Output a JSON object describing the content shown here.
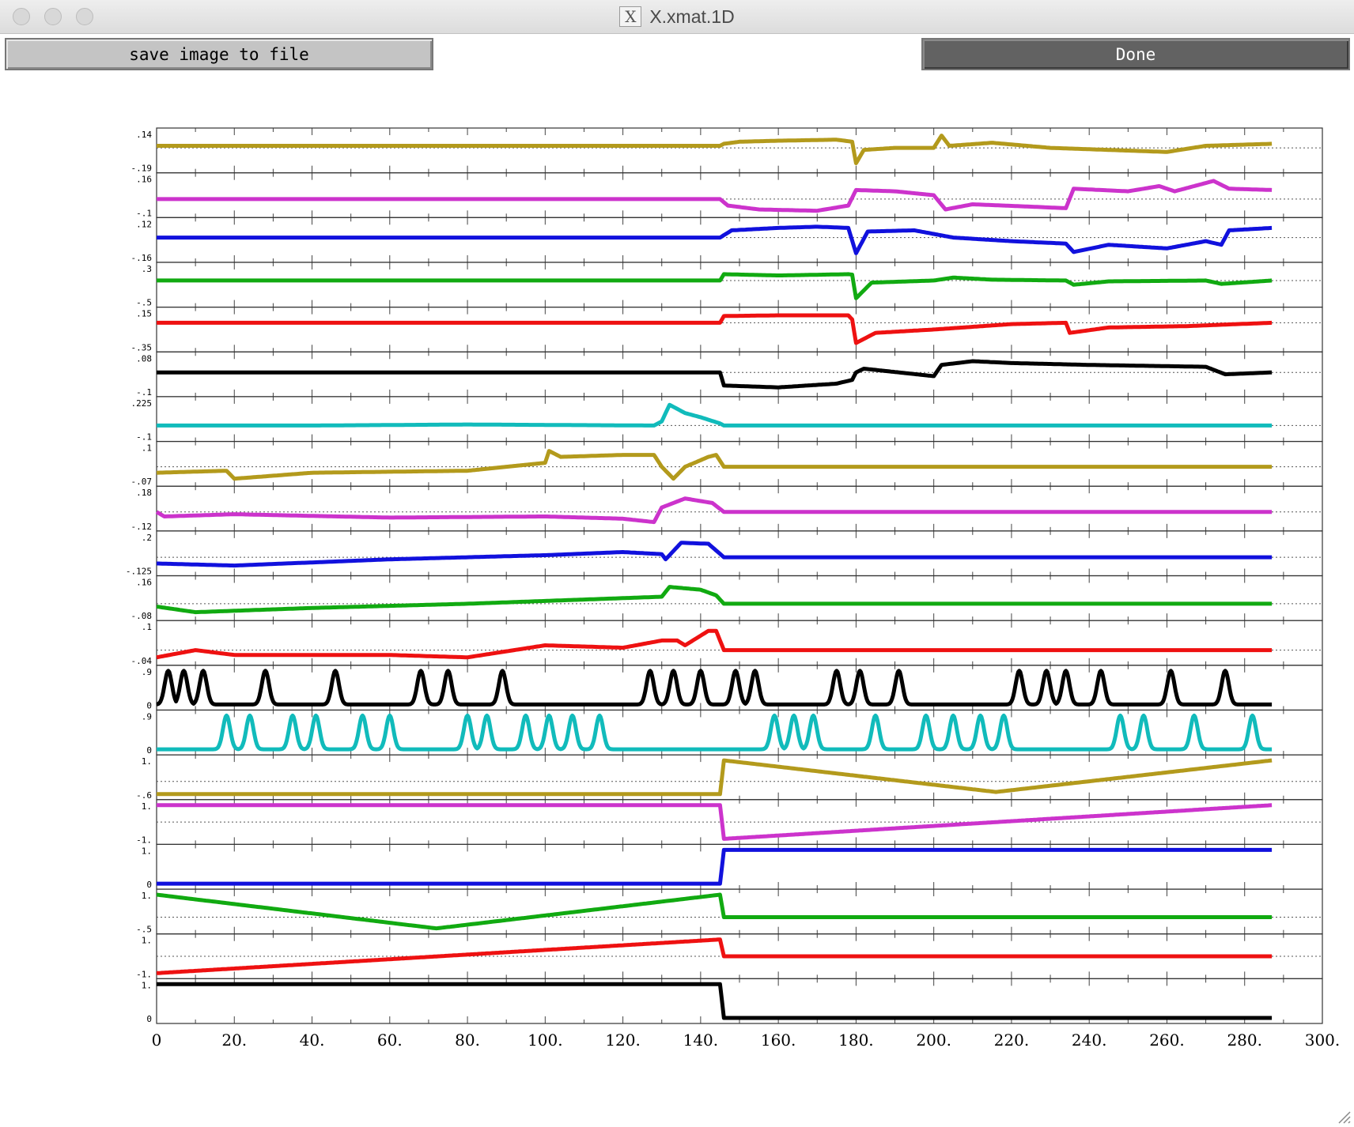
{
  "window": {
    "title": "X.xmat.1D"
  },
  "toolbar": {
    "save_label": "save image to file",
    "done_label": "Done"
  },
  "icons": {
    "app": "x11-icon",
    "resize": "resize-grip-icon"
  },
  "chart_data": {
    "type": "line",
    "title": "",
    "xlabel": "",
    "ylabel": "",
    "xlim": [
      0,
      300
    ],
    "x_ticks": [
      "0",
      "20.",
      "40.",
      "60.",
      "80.",
      "100.",
      "120.",
      "140.",
      "160.",
      "180.",
      "200.",
      "220.",
      "240.",
      "260.",
      "280.",
      "300."
    ],
    "n_timepoints": 288,
    "grid": true,
    "series": [
      {
        "color": "#b39a1c",
        "top_label": ".14",
        "bottom_label": "-.19",
        "values": [
          [
            0,
            0.02
          ],
          [
            145,
            0.02
          ],
          [
            146,
            0.04
          ],
          [
            150,
            0.06
          ],
          [
            160,
            0.07
          ],
          [
            175,
            0.08
          ],
          [
            179,
            0.06
          ],
          [
            180,
            -0.15
          ],
          [
            182,
            -0.02
          ],
          [
            190,
            0.0
          ],
          [
            200,
            0.0
          ],
          [
            202,
            0.12
          ],
          [
            204,
            0.02
          ],
          [
            215,
            0.05
          ],
          [
            230,
            0.0
          ],
          [
            245,
            -0.02
          ],
          [
            260,
            -0.04
          ],
          [
            270,
            0.02
          ],
          [
            287,
            0.04
          ]
        ]
      },
      {
        "color": "#cc33cc",
        "top_label": ".16",
        "bottom_label": "-.1",
        "values": [
          [
            0,
            0.0
          ],
          [
            145,
            0.0
          ],
          [
            147,
            -0.05
          ],
          [
            155,
            -0.08
          ],
          [
            170,
            -0.09
          ],
          [
            178,
            -0.05
          ],
          [
            180,
            0.07
          ],
          [
            190,
            0.06
          ],
          [
            200,
            0.03
          ],
          [
            203,
            -0.08
          ],
          [
            210,
            -0.04
          ],
          [
            234,
            -0.07
          ],
          [
            236,
            0.08
          ],
          [
            250,
            0.06
          ],
          [
            258,
            0.1
          ],
          [
            262,
            0.06
          ],
          [
            272,
            0.14
          ],
          [
            276,
            0.08
          ],
          [
            287,
            0.07
          ]
        ]
      },
      {
        "color": "#1111dd",
        "top_label": ".12",
        "bottom_label": "-.16",
        "values": [
          [
            0,
            0.0
          ],
          [
            145,
            0.0
          ],
          [
            148,
            0.06
          ],
          [
            160,
            0.08
          ],
          [
            170,
            0.09
          ],
          [
            178,
            0.08
          ],
          [
            180,
            -0.13
          ],
          [
            183,
            0.05
          ],
          [
            195,
            0.06
          ],
          [
            205,
            0.0
          ],
          [
            220,
            -0.03
          ],
          [
            234,
            -0.05
          ],
          [
            236,
            -0.12
          ],
          [
            245,
            -0.06
          ],
          [
            260,
            -0.09
          ],
          [
            270,
            -0.03
          ],
          [
            274,
            -0.06
          ],
          [
            276,
            0.06
          ],
          [
            287,
            0.08
          ]
        ]
      },
      {
        "color": "#11aa11",
        "top_label": ".3",
        "bottom_label": "-.5",
        "values": [
          [
            0,
            0.0
          ],
          [
            145,
            0.0
          ],
          [
            146,
            0.15
          ],
          [
            160,
            0.12
          ],
          [
            178,
            0.15
          ],
          [
            179,
            0.14
          ],
          [
            180,
            -0.42
          ],
          [
            184,
            -0.05
          ],
          [
            200,
            0.0
          ],
          [
            205,
            0.07
          ],
          [
            215,
            0.02
          ],
          [
            234,
            0.0
          ],
          [
            236,
            -0.1
          ],
          [
            245,
            -0.02
          ],
          [
            270,
            0.0
          ],
          [
            274,
            -0.08
          ],
          [
            287,
            0.0
          ]
        ]
      },
      {
        "color": "#ee1111",
        "top_label": ".15",
        "bottom_label": "-.35",
        "values": [
          [
            0,
            0.0
          ],
          [
            145,
            0.0
          ],
          [
            146,
            0.1
          ],
          [
            160,
            0.11
          ],
          [
            178,
            0.11
          ],
          [
            179,
            0.05
          ],
          [
            180,
            -0.3
          ],
          [
            185,
            -0.15
          ],
          [
            200,
            -0.1
          ],
          [
            220,
            -0.02
          ],
          [
            234,
            0.0
          ],
          [
            235,
            -0.15
          ],
          [
            245,
            -0.07
          ],
          [
            265,
            -0.05
          ],
          [
            287,
            0.0
          ]
        ]
      },
      {
        "color": "#000000",
        "top_label": ".08",
        "bottom_label": "-.1",
        "values": [
          [
            0,
            0.0
          ],
          [
            145,
            0.0
          ],
          [
            146,
            -0.07
          ],
          [
            160,
            -0.08
          ],
          [
            175,
            -0.06
          ],
          [
            179,
            -0.04
          ],
          [
            180,
            0.0
          ],
          [
            182,
            0.02
          ],
          [
            200,
            -0.02
          ],
          [
            202,
            0.04
          ],
          [
            210,
            0.06
          ],
          [
            220,
            0.05
          ],
          [
            240,
            0.04
          ],
          [
            270,
            0.03
          ],
          [
            275,
            -0.01
          ],
          [
            287,
            0.0
          ]
        ]
      },
      {
        "color": "#11bbbb",
        "top_label": ".225",
        "bottom_label": "-.1",
        "values": [
          [
            0,
            0.0
          ],
          [
            40,
            0.0
          ],
          [
            80,
            0.01
          ],
          [
            128,
            0.0
          ],
          [
            130,
            0.04
          ],
          [
            132,
            0.2
          ],
          [
            136,
            0.12
          ],
          [
            140,
            0.08
          ],
          [
            145,
            0.02
          ],
          [
            146,
            0.0
          ],
          [
            287,
            0.0
          ]
        ]
      },
      {
        "color": "#b39a1c",
        "top_label": ".1",
        "bottom_label": "-.07",
        "values": [
          [
            0,
            -0.03
          ],
          [
            18,
            -0.02
          ],
          [
            20,
            -0.06
          ],
          [
            40,
            -0.03
          ],
          [
            80,
            -0.02
          ],
          [
            90,
            0.0
          ],
          [
            100,
            0.02
          ],
          [
            101,
            0.08
          ],
          [
            104,
            0.05
          ],
          [
            120,
            0.06
          ],
          [
            128,
            0.06
          ],
          [
            130,
            0.0
          ],
          [
            133,
            -0.06
          ],
          [
            136,
            0.0
          ],
          [
            142,
            0.05
          ],
          [
            144,
            0.06
          ],
          [
            146,
            0.0
          ],
          [
            287,
            0.0
          ]
        ]
      },
      {
        "color": "#cc33cc",
        "top_label": ".18",
        "bottom_label": "-.12",
        "values": [
          [
            0,
            0.0
          ],
          [
            2,
            -0.04
          ],
          [
            20,
            -0.02
          ],
          [
            60,
            -0.05
          ],
          [
            100,
            -0.04
          ],
          [
            120,
            -0.06
          ],
          [
            128,
            -0.09
          ],
          [
            130,
            0.04
          ],
          [
            136,
            0.12
          ],
          [
            143,
            0.08
          ],
          [
            146,
            0.0
          ],
          [
            287,
            0.0
          ]
        ]
      },
      {
        "color": "#1111dd",
        "top_label": ".2",
        "bottom_label": "-.125",
        "values": [
          [
            0,
            -0.06
          ],
          [
            20,
            -0.08
          ],
          [
            60,
            -0.02
          ],
          [
            100,
            0.02
          ],
          [
            120,
            0.05
          ],
          [
            130,
            0.03
          ],
          [
            131,
            -0.02
          ],
          [
            135,
            0.14
          ],
          [
            142,
            0.13
          ],
          [
            146,
            0.0
          ],
          [
            287,
            0.0
          ]
        ]
      },
      {
        "color": "#11aa11",
        "top_label": ".16",
        "bottom_label": "-.08",
        "values": [
          [
            0,
            -0.02
          ],
          [
            10,
            -0.06
          ],
          [
            40,
            -0.03
          ],
          [
            80,
            0.0
          ],
          [
            120,
            0.04
          ],
          [
            130,
            0.05
          ],
          [
            132,
            0.12
          ],
          [
            140,
            0.1
          ],
          [
            144,
            0.06
          ],
          [
            146,
            0.0
          ],
          [
            287,
            0.0
          ]
        ]
      },
      {
        "color": "#ee1111",
        "top_label": ".1",
        "bottom_label": "-.04",
        "values": [
          [
            0,
            -0.03
          ],
          [
            10,
            0.0
          ],
          [
            20,
            -0.02
          ],
          [
            60,
            -0.02
          ],
          [
            80,
            -0.03
          ],
          [
            100,
            0.02
          ],
          [
            120,
            0.01
          ],
          [
            130,
            0.04
          ],
          [
            134,
            0.04
          ],
          [
            136,
            0.02
          ],
          [
            142,
            0.08
          ],
          [
            144,
            0.08
          ],
          [
            146,
            0.0
          ],
          [
            287,
            0.0
          ]
        ]
      },
      {
        "color": "#000000",
        "top_label": ".9",
        "bottom_label": "0",
        "peak_centers": [
          3,
          7,
          12,
          28,
          46,
          68,
          75,
          89,
          127,
          133,
          140,
          149,
          154,
          175,
          181,
          191,
          222,
          229,
          234,
          243,
          261,
          275
        ],
        "peak_height": 0.9
      },
      {
        "color": "#11bbbb",
        "top_label": ".9",
        "bottom_label": "0",
        "peak_centers": [
          18,
          24,
          35,
          41,
          53,
          60,
          80,
          85,
          95,
          101,
          107,
          114,
          159,
          164,
          169,
          185,
          198,
          205,
          212,
          218,
          248,
          254,
          267,
          282
        ],
        "peak_height": 0.9
      },
      {
        "color": "#b39a1c",
        "top_label": "1.",
        "bottom_label": "-.6",
        "values": [
          [
            0,
            -0.6
          ],
          [
            145,
            -0.6
          ],
          [
            146,
            1.0
          ],
          [
            216,
            -0.5
          ],
          [
            287,
            1.0
          ]
        ]
      },
      {
        "color": "#cc33cc",
        "top_label": "1.",
        "bottom_label": "-1.",
        "values": [
          [
            0,
            1.0
          ],
          [
            145,
            1.0
          ],
          [
            146,
            -1.0
          ],
          [
            287,
            1.0
          ]
        ]
      },
      {
        "color": "#1111dd",
        "top_label": "1.",
        "bottom_label": "0",
        "values": [
          [
            0,
            0.0
          ],
          [
            145,
            0.0
          ],
          [
            146,
            1.0
          ],
          [
            287,
            1.0
          ]
        ]
      },
      {
        "color": "#11aa11",
        "top_label": "1.",
        "bottom_label": "-.5",
        "values": [
          [
            0,
            1.0
          ],
          [
            72,
            -0.5
          ],
          [
            145,
            1.0
          ],
          [
            146,
            0.0
          ],
          [
            287,
            0.0
          ]
        ]
      },
      {
        "color": "#ee1111",
        "top_label": "1.",
        "bottom_label": "-1.",
        "values": [
          [
            0,
            -1.0
          ],
          [
            145,
            1.0
          ],
          [
            146,
            0.0
          ],
          [
            287,
            0.0
          ]
        ]
      },
      {
        "color": "#000000",
        "top_label": "1.",
        "bottom_label": "0",
        "values": [
          [
            0,
            1.0
          ],
          [
            145,
            1.0
          ],
          [
            146,
            0.0
          ],
          [
            287,
            0.0
          ]
        ]
      }
    ]
  }
}
